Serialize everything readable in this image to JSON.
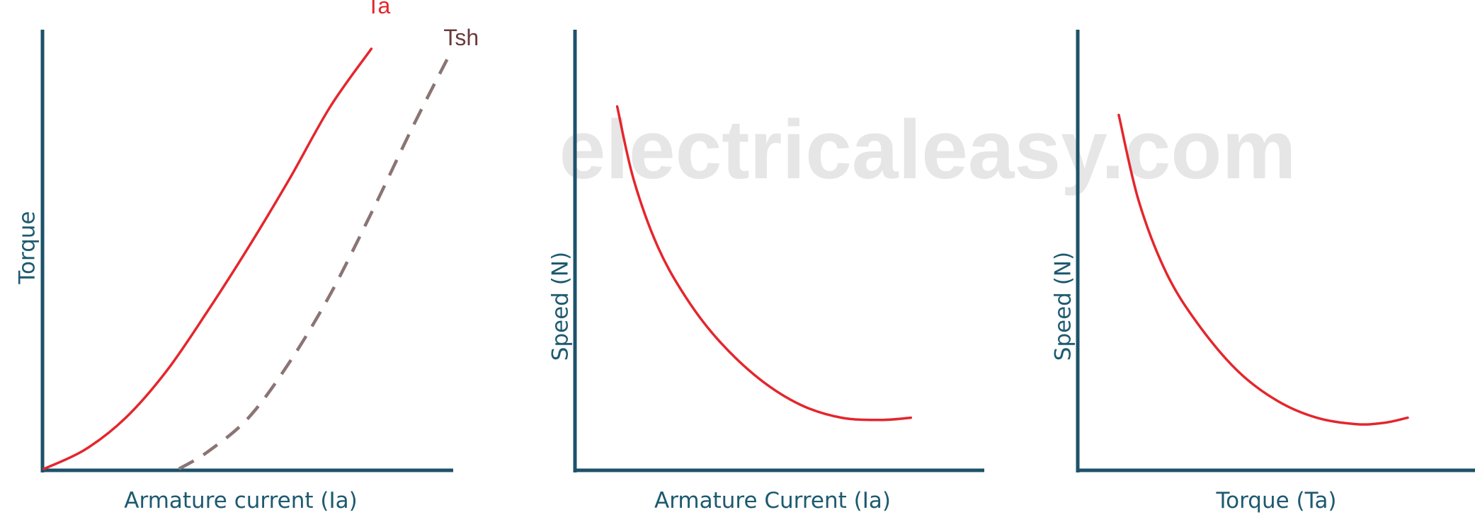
{
  "watermark": "electricaleasy.com",
  "colors": {
    "axis": "#1d5269",
    "axis_text": "#1d5a70",
    "curve_primary": "#e4262c",
    "curve_secondary": "#8a7474",
    "curve_secondary_label": "#6a3b3b",
    "watermark": "#e6e6e6"
  },
  "chart_data": [
    {
      "type": "line",
      "xlabel": "Armature current (Ia)",
      "ylabel": "Torque",
      "axes_ticks": false,
      "grid": false,
      "xlim": [
        0,
        1
      ],
      "ylim": [
        0,
        1
      ],
      "series": [
        {
          "name": "Ta",
          "style": "solid",
          "x": [
            0.0,
            0.1,
            0.2,
            0.3,
            0.4,
            0.5,
            0.6,
            0.7,
            0.8
          ],
          "y": [
            0.0,
            0.045,
            0.12,
            0.23,
            0.37,
            0.52,
            0.68,
            0.85,
            0.985
          ]
        },
        {
          "name": "Tsh",
          "style": "dashed",
          "x": [
            0.33,
            0.4,
            0.5,
            0.6,
            0.7,
            0.8,
            0.9,
            0.985
          ],
          "y": [
            0.0,
            0.04,
            0.12,
            0.25,
            0.41,
            0.6,
            0.8,
            0.96
          ]
        }
      ]
    },
    {
      "type": "line",
      "xlabel": "Armature Current (Ia)",
      "ylabel": "Speed (N)",
      "axes_ticks": false,
      "grid": false,
      "xlim": [
        0,
        1
      ],
      "ylim": [
        0,
        1
      ],
      "series": [
        {
          "name": "",
          "style": "solid",
          "x": [
            0.1,
            0.14,
            0.2,
            0.27,
            0.35,
            0.45,
            0.55,
            0.65,
            0.75,
            0.82
          ],
          "y": [
            0.85,
            0.68,
            0.52,
            0.4,
            0.3,
            0.21,
            0.15,
            0.12,
            0.115,
            0.12
          ]
        }
      ]
    },
    {
      "type": "line",
      "xlabel": "Torque (Ta)",
      "ylabel": "Speed (N)",
      "axes_ticks": false,
      "grid": false,
      "xlim": [
        0,
        1
      ],
      "ylim": [
        0,
        1
      ],
      "series": [
        {
          "name": "",
          "style": "solid",
          "x": [
            0.1,
            0.15,
            0.22,
            0.3,
            0.4,
            0.5,
            0.6,
            0.7,
            0.77,
            0.83
          ],
          "y": [
            0.83,
            0.63,
            0.46,
            0.34,
            0.23,
            0.16,
            0.12,
            0.105,
            0.108,
            0.12
          ]
        }
      ]
    }
  ]
}
